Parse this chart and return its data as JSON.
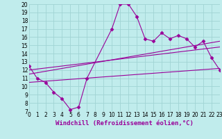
{
  "xlabel": "Windchill (Refroidissement éolien,°C)",
  "bg_color": "#c0ecec",
  "grid_color": "#a0d4d4",
  "line_color": "#990099",
  "xmin": 0,
  "xmax": 23,
  "ymin": 7,
  "ymax": 20,
  "line1_x": [
    0,
    1,
    2,
    3,
    4,
    5,
    6,
    7,
    10,
    11,
    12,
    13,
    14,
    15,
    16,
    17,
    18,
    19,
    20,
    21,
    22,
    23
  ],
  "line1_y": [
    12.5,
    11.0,
    10.5,
    9.3,
    8.5,
    7.2,
    7.5,
    11.0,
    17.0,
    20.0,
    20.0,
    18.5,
    15.8,
    15.5,
    16.5,
    15.8,
    16.2,
    15.8,
    14.8,
    15.5,
    13.5,
    12.0
  ],
  "line2_x": [
    0,
    23
  ],
  "line2_y": [
    11.5,
    15.5
  ],
  "line3_x": [
    0,
    23
  ],
  "line3_y": [
    12.0,
    14.8
  ],
  "line4_x": [
    0,
    23
  ],
  "line4_y": [
    10.5,
    12.2
  ],
  "marker": "D",
  "marker_size": 2.5,
  "font_size_label": 6.5,
  "font_size_tick": 5.5
}
